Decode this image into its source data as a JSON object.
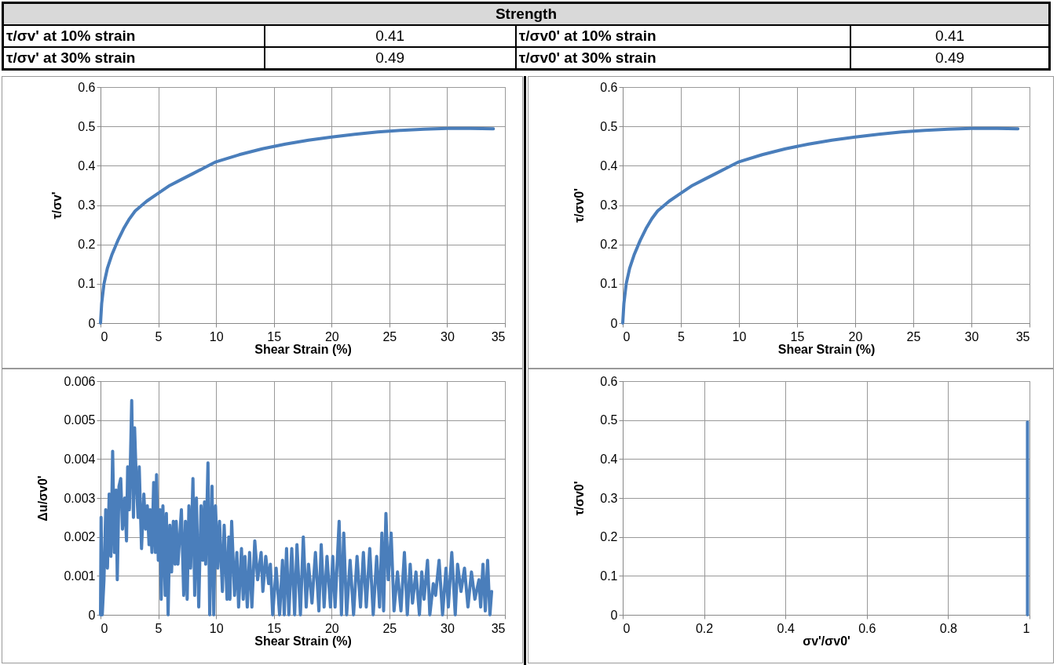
{
  "chart_data": [
    {
      "type": "other",
      "title": "Strength",
      "annotations": [
        "τ/σv' at 10% strain",
        "0.41",
        "τ/σv0' at 10% strain",
        "0.41",
        "τ/σv' at 30% strain",
        "0.49",
        "τ/σv0' at 30% strain",
        "0.49"
      ]
    },
    {
      "type": "line",
      "xlabel": "Shear Strain (%)",
      "ylabel": "τ/σv'",
      "xlim": [
        0,
        35
      ],
      "xticks": [
        0,
        5,
        10,
        15,
        20,
        25,
        30,
        35
      ],
      "ylim": [
        0,
        0.6
      ],
      "yticks": [
        0,
        0.1,
        0.2,
        0.3,
        0.4,
        0.5,
        0.6
      ],
      "grid": true,
      "series": [
        {
          "color": "#4a7ebb",
          "x": [
            0,
            0.1,
            0.3,
            0.6,
            1,
            1.5,
            2,
            2.5,
            3,
            4,
            5,
            6,
            7,
            8,
            9,
            10,
            12,
            14,
            16,
            18,
            20,
            22,
            24,
            26,
            28,
            30,
            32,
            34
          ],
          "values": [
            0,
            0.05,
            0.1,
            0.14,
            0.175,
            0.21,
            0.24,
            0.265,
            0.285,
            0.31,
            0.33,
            0.35,
            0.365,
            0.38,
            0.395,
            0.41,
            0.428,
            0.443,
            0.455,
            0.465,
            0.473,
            0.48,
            0.486,
            0.49,
            0.493,
            0.495,
            0.495,
            0.494
          ]
        }
      ]
    },
    {
      "type": "line",
      "xlabel": "Shear Strain (%)",
      "ylabel": "τ/σv0'",
      "xlim": [
        0,
        35
      ],
      "xticks": [
        0,
        5,
        10,
        15,
        20,
        25,
        30,
        35
      ],
      "ylim": [
        0,
        0.6
      ],
      "yticks": [
        0,
        0.1,
        0.2,
        0.3,
        0.4,
        0.5,
        0.6
      ],
      "grid": true,
      "series": [
        {
          "color": "#4a7ebb",
          "x": [
            0,
            0.1,
            0.3,
            0.6,
            1,
            1.5,
            2,
            2.5,
            3,
            4,
            5,
            6,
            7,
            8,
            9,
            10,
            12,
            14,
            16,
            18,
            20,
            22,
            24,
            26,
            28,
            30,
            32,
            34
          ],
          "values": [
            0,
            0.05,
            0.1,
            0.14,
            0.175,
            0.21,
            0.24,
            0.265,
            0.285,
            0.31,
            0.33,
            0.35,
            0.365,
            0.38,
            0.395,
            0.41,
            0.428,
            0.443,
            0.455,
            0.465,
            0.473,
            0.48,
            0.486,
            0.49,
            0.493,
            0.495,
            0.495,
            0.494
          ]
        }
      ]
    },
    {
      "type": "line",
      "xlabel": "Shear Strain (%)",
      "ylabel": "Δu/σv0'",
      "xlim": [
        0,
        35
      ],
      "xticks": [
        0,
        5,
        10,
        15,
        20,
        25,
        30,
        35
      ],
      "ylim": [
        0,
        0.006
      ],
      "yticks": [
        0,
        0.001,
        0.002,
        0.003,
        0.004,
        0.005,
        0.006
      ],
      "grid": true,
      "series": [
        {
          "color": "#4a7ebb",
          "x": [
            0,
            0.05,
            0.15,
            0.3,
            0.45,
            0.6,
            0.75,
            0.9,
            1.05,
            1.2,
            1.35,
            1.45,
            1.6,
            1.75,
            1.9,
            2.1,
            2.25,
            2.35,
            2.5,
            2.7,
            2.85,
            2.95,
            3.1,
            3.25,
            3.35,
            3.55,
            3.75,
            3.9,
            4.05,
            4.2,
            4.3,
            4.45,
            4.6,
            4.75,
            4.85,
            5.0,
            5.15,
            5.25,
            5.4,
            5.6,
            5.7,
            5.85,
            6.0,
            6.15,
            6.3,
            6.45,
            6.55,
            6.7,
            7.0,
            7.2,
            7.35,
            7.5,
            7.65,
            7.8,
            8.0,
            8.15,
            8.3,
            8.5,
            8.7,
            8.85,
            9.0,
            9.1,
            9.3,
            9.45,
            9.65,
            9.8,
            9.95,
            10.15,
            10.3,
            10.55,
            10.7,
            10.95,
            11.1,
            11.2,
            11.35,
            11.6,
            11.8,
            11.95,
            12.2,
            12.35,
            12.5,
            12.7,
            12.9,
            13.1,
            13.35,
            13.6,
            13.9,
            14.05,
            14.3,
            14.55,
            14.7,
            14.9,
            15.2,
            15.5,
            15.75,
            15.9,
            16.1,
            16.3,
            16.55,
            16.8,
            17.0,
            17.3,
            17.55,
            17.8,
            18.0,
            18.3,
            18.6,
            18.9,
            19.1,
            19.35,
            19.6,
            19.9,
            20.1,
            20.3,
            20.65,
            20.85,
            21.05,
            21.3,
            21.6,
            21.9,
            22.2,
            22.5,
            22.75,
            23.0,
            23.3,
            23.6,
            23.9,
            24.15,
            24.35,
            24.5,
            24.7,
            24.9,
            25.15,
            25.4,
            25.7,
            26.0,
            26.3,
            26.55,
            26.8,
            27.0,
            27.3,
            27.6,
            27.8,
            28.0,
            28.3,
            28.5,
            28.8,
            29.0,
            29.3,
            29.6,
            29.9,
            30.1,
            30.4,
            30.7,
            30.9,
            31.2,
            31.5,
            31.8,
            32.1,
            32.4,
            32.75,
            32.9,
            33.1,
            33.3,
            33.5,
            33.7,
            33.85
          ],
          "values": [
            0,
            0.0025,
            0,
            0.0009,
            0.0027,
            0.0012,
            0.0031,
            0.0015,
            0.0042,
            0.0016,
            0.0032,
            0.0009,
            0.0033,
            0.0035,
            0.0022,
            0.003,
            0.0019,
            0.0038,
            0.0027,
            0.0055,
            0.0025,
            0.0048,
            0.0034,
            0.0025,
            0.0038,
            0.0017,
            0.0031,
            0.0022,
            0.0028,
            0.0018,
            0.0027,
            0.0016,
            0.0034,
            0.0016,
            0.0036,
            0.0014,
            0.0027,
            0.0004,
            0.0028,
            0.0005,
            0.0026,
            0,
            0.0023,
            0.0011,
            0.0024,
            0.0013,
            0.0024,
            0.0013,
            0.0027,
            0.0005,
            0.0024,
            0.0004,
            0.0028,
            0.0012,
            0.0035,
            0.0005,
            0.003,
            0.0002,
            0.0028,
            0.0014,
            0.0029,
            0.0013,
            0.0039,
            0,
            0.0033,
            0,
            0.0028,
            0.0012,
            0.0024,
            0.0006,
            0.0023,
            0.0004,
            0.002,
            0.0004,
            0.0024,
            0.0005,
            0.0016,
            0.0002,
            0.0017,
            0.0004,
            0.0015,
            0.0002,
            0.0016,
            0.0002,
            0.0019,
            0.0009,
            0.0016,
            0.0006,
            0.0015,
            0.0008,
            0.0013,
            0,
            0.0012,
            0,
            0.0014,
            0,
            0.0017,
            0,
            0.0017,
            0,
            0.0018,
            0,
            0.002,
            0.0002,
            0.0013,
            0.0003,
            0.0016,
            0.0001,
            0.0018,
            0.0002,
            0.0015,
            0.0002,
            0.0015,
            0.0002,
            0.0024,
            0,
            0.0021,
            0,
            0.0014,
            0,
            0.0015,
            0.0002,
            0.0016,
            0.0002,
            0.0017,
            0,
            0.0015,
            0.0002,
            0.0021,
            0.0001,
            0.0026,
            0.0009,
            0.0021,
            0.0001,
            0.0011,
            0.0001,
            0.0016,
            0,
            0.0013,
            0.0003,
            0.0011,
            0,
            0.0011,
            0.0004,
            0.0014,
            0,
            0.0008,
            0.0005,
            0.0014,
            0,
            0.0012,
            0.0002,
            0.0016,
            0,
            0.0013,
            0.0006,
            0.0012,
            0.0002,
            0.0011,
            0.0004,
            0.0009,
            0.0002,
            0.0013,
            0.0001,
            0.0014,
            0,
            0.0006
          ]
        }
      ]
    },
    {
      "type": "line",
      "xlabel": "σv'/σv0'",
      "ylabel": "τ/σv0'",
      "xlim": [
        0,
        1
      ],
      "xticks": [
        0,
        0.2,
        0.4,
        0.6,
        0.8,
        1
      ],
      "ylim": [
        0,
        0.6
      ],
      "yticks": [
        0,
        0.1,
        0.2,
        0.3,
        0.4,
        0.5,
        0.6
      ],
      "grid": true,
      "series": [
        {
          "color": "#4a7ebb",
          "x": [
            0.995,
            0.995,
            0.995,
            0.995,
            0.995,
            0.995,
            0.995
          ],
          "values": [
            0,
            0.1,
            0.2,
            0.3,
            0.4,
            0.45,
            0.495
          ]
        }
      ]
    }
  ]
}
